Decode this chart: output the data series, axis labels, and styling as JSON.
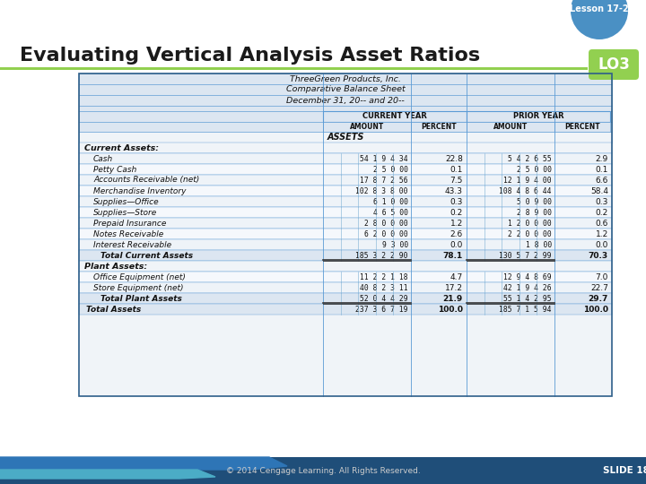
{
  "title": "Evaluating Vertical Analysis Asset Ratios",
  "lesson_label": "Lesson 17-2",
  "lo_label": "LO3",
  "slide_label": "SLIDE 18",
  "footer": "© 2014 Cengage Learning. All Rights Reserved.",
  "bg_color": "#ffffff",
  "slide_bg": "#e8e8e8",
  "top_badge_bg": "#4a90c4",
  "table_hdr_bg": "#dce6f1",
  "table_row_bg1": "#f0f4f8",
  "table_row_bg2": "#e8eef5",
  "table_total_bg": "#dce6f1",
  "table_border": "#5b9bd5",
  "green_line": "#92d050",
  "lo_bg": "#92d050",
  "footer_bg": "#1f4e79",
  "footer_wave1": "#2e75b6",
  "footer_wave2": "#4bacc6",
  "footer_text": "#cccccc",
  "title_color": "#1a1a1a",
  "company_name": "ThreeGreen Products, Inc.",
  "balance_sheet": "Comparative Balance Sheet",
  "date_line": "December 31, 20-- and 20--",
  "col_headers": [
    "CURRENT YEAR",
    "PRIOR YEAR"
  ],
  "section_assets": "ASSETS",
  "section_current": "Current Assets:",
  "section_plant": "Plant Assets:",
  "rows": [
    {
      "label": "Cash",
      "cy_amt": "54 1 9 4 34",
      "cy_pct": "22.8",
      "py_amt": "5 4 2 6 55",
      "py_pct": "2.9",
      "indent": 2,
      "bold": false,
      "total": false
    },
    {
      "label": "Petty Cash",
      "cy_amt": "2 5 0 00",
      "cy_pct": "0.1",
      "py_amt": "2 5 0 00",
      "py_pct": "0.1",
      "indent": 2,
      "bold": false,
      "total": false
    },
    {
      "label": "Accounts Receivable (net)",
      "cy_amt": "17 8 7 2 56",
      "cy_pct": "7.5",
      "py_amt": "12 1 9 4 00",
      "py_pct": "6.6",
      "indent": 2,
      "bold": false,
      "total": false
    },
    {
      "label": "Merchandise Inventory",
      "cy_amt": "102 8 3 8 00",
      "cy_pct": "43.3",
      "py_amt": "108 4 8 6 44",
      "py_pct": "58.4",
      "indent": 2,
      "bold": false,
      "total": false
    },
    {
      "label": "Supplies—Office",
      "cy_amt": "6 1 0 00",
      "cy_pct": "0.3",
      "py_amt": "5 0 9 00",
      "py_pct": "0.3",
      "indent": 2,
      "bold": false,
      "total": false
    },
    {
      "label": "Supplies—Store",
      "cy_amt": "4 6 5 00",
      "cy_pct": "0.2",
      "py_amt": "2 8 9 00",
      "py_pct": "0.2",
      "indent": 2,
      "bold": false,
      "total": false
    },
    {
      "label": "Prepaid Insurance",
      "cy_amt": "2 8 0 0 00",
      "cy_pct": "1.2",
      "py_amt": "1 2 0 0 00",
      "py_pct": "0.6",
      "indent": 2,
      "bold": false,
      "total": false
    },
    {
      "label": "Notes Receivable",
      "cy_amt": "6 2 0 0 00",
      "cy_pct": "2.6",
      "py_amt": "2 2 0 0 00",
      "py_pct": "1.2",
      "indent": 2,
      "bold": false,
      "total": false
    },
    {
      "label": "Interest Receivable",
      "cy_amt": "9 3 00",
      "cy_pct": "0.0",
      "py_amt": "1 8 00",
      "py_pct": "0.0",
      "indent": 2,
      "bold": false,
      "total": false
    },
    {
      "label": "Total Current Assets",
      "cy_amt": "185 3 2 2 90",
      "cy_pct": "78.1",
      "py_amt": "130 5 7 2 99",
      "py_pct": "70.3",
      "indent": 3,
      "bold": true,
      "total": true
    },
    {
      "label": "Office Equipment (net)",
      "cy_amt": "11 2 2 1 18",
      "cy_pct": "4.7",
      "py_amt": "12 9 4 8 69",
      "py_pct": "7.0",
      "indent": 2,
      "bold": false,
      "total": false
    },
    {
      "label": "Store Equipment (net)",
      "cy_amt": "40 8 2 3 11",
      "cy_pct": "17.2",
      "py_amt": "42 1 9 4 26",
      "py_pct": "22.7",
      "indent": 2,
      "bold": false,
      "total": false
    },
    {
      "label": "Total Plant Assets",
      "cy_amt": "52 0 4 4 29",
      "cy_pct": "21.9",
      "py_amt": "55 1 4 2 95",
      "py_pct": "29.7",
      "indent": 3,
      "bold": true,
      "total": true
    },
    {
      "label": "Total Assets",
      "cy_amt": "237 3 6 7 19",
      "cy_pct": "100.0",
      "py_amt": "185 7 1 5 94",
      "py_pct": "100.0",
      "indent": 1,
      "bold": true,
      "total": true
    }
  ]
}
